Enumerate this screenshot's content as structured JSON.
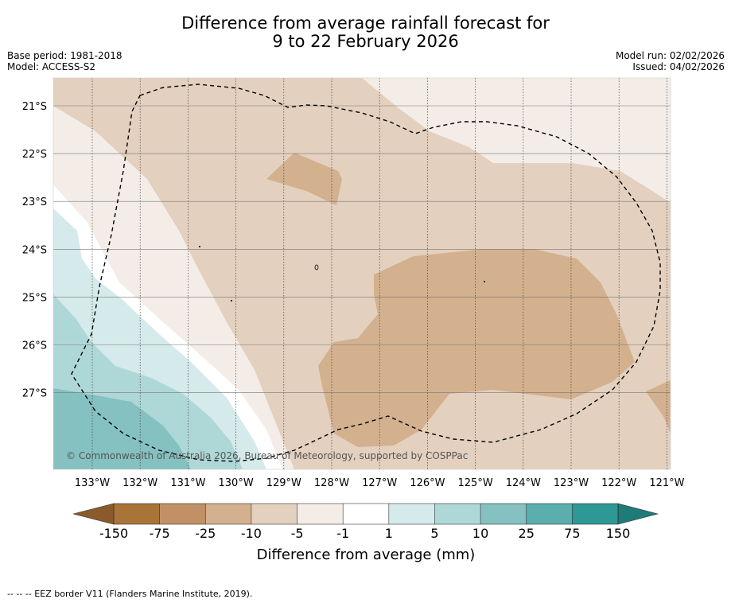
{
  "title": {
    "line1": "Difference from average rainfall forecast for",
    "line2": "9 to 22 February 2026"
  },
  "meta_left": {
    "base_period": "Base period: 1981-2018",
    "model": "Model: ACCESS-S2"
  },
  "meta_right": {
    "model_run": "Model run: 02/02/2026",
    "issued": "Issued: 04/02/2026"
  },
  "lat_labels": [
    "21°S",
    "22°S",
    "23°S",
    "24°S",
    "25°S",
    "26°S",
    "27°S"
  ],
  "lon_labels": [
    "133°W",
    "132°W",
    "131°W",
    "130°W",
    "129°W",
    "128°W",
    "127°W",
    "126°W",
    "125°W",
    "124°W",
    "123°W",
    "122°W",
    "121°W"
  ],
  "copyright": "© Commonwealth of Australia 2026, Bureau of Meteorology, supported by COSPPac",
  "colorbar": {
    "ticks": [
      "-150",
      "-75",
      "-25",
      "-10",
      "-5",
      "-1",
      "1",
      "5",
      "10",
      "25",
      "75",
      "150"
    ],
    "colors": [
      "#a87438",
      "#c19165",
      "#d3b08e",
      "#e3d0be",
      "#f4ede7",
      "#ffffff",
      "#d5eaea",
      "#aed8d7",
      "#84c1c0",
      "#5baeae",
      "#2e9895"
    ],
    "under_color": "#8b5a2b",
    "over_color": "#1f7b78",
    "title": "Difference from average (mm)"
  },
  "footnote": "--  --  -- EEZ border V11 (Flanders Marine Institute, 2019)."
}
